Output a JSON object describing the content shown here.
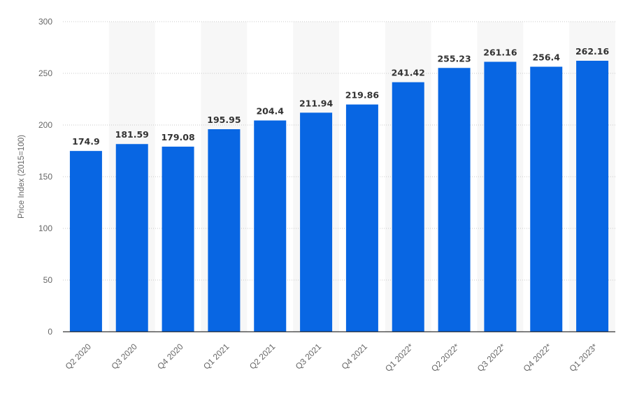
{
  "chart_data": {
    "type": "bar",
    "categories": [
      "Q2 2020",
      "Q3 2020",
      "Q4 2020",
      "Q1 2021",
      "Q2 2021",
      "Q3 2021",
      "Q4 2021",
      "Q1 2022*",
      "Q2 2022*",
      "Q3 2022*",
      "Q4 2022*",
      "Q1 2023*"
    ],
    "values": [
      174.9,
      181.59,
      179.08,
      195.95,
      204.4,
      211.94,
      219.86,
      241.42,
      255.23,
      261.16,
      256.4,
      262.16
    ],
    "value_labels": [
      "174.9",
      "181.59",
      "179.08",
      "195.95",
      "204.4",
      "211.94",
      "219.86",
      "241.42",
      "255.23",
      "261.16",
      "256.4",
      "262.16"
    ],
    "title": "",
    "xlabel": "",
    "ylabel": "Price Index (2015=100)",
    "ylim": [
      0,
      300
    ],
    "yticks": [
      0,
      50,
      100,
      150,
      200,
      250,
      300
    ],
    "grid": true,
    "legend": "none",
    "colors": {
      "bar": "#0866e3",
      "band": "#f7f7f7",
      "grid": "#c8c8c8",
      "axis": "#000000"
    }
  }
}
